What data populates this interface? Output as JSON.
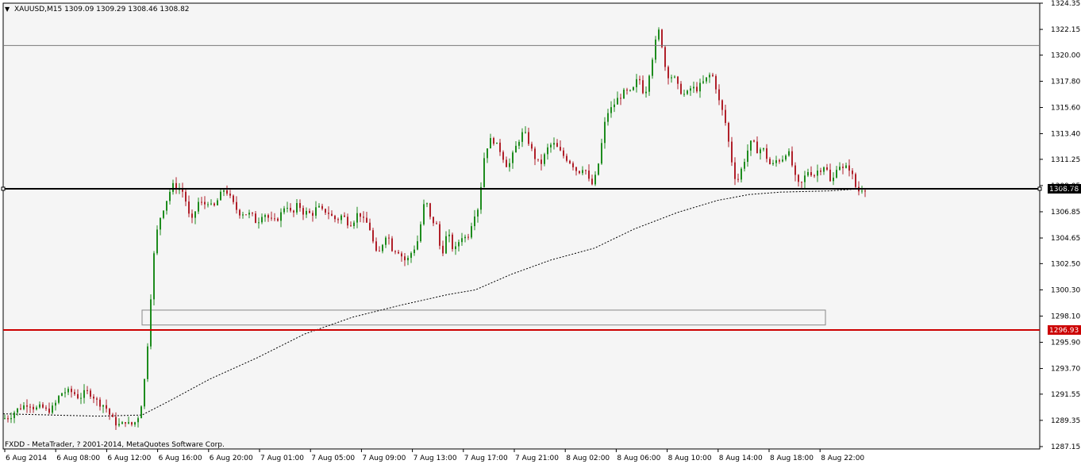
{
  "window": {
    "symbol_header": "XAUUSD,M15  1309.09 1309.29 1308.46 1308.82",
    "copyright": "FXDD - MetaTrader, ? 2001-2014, MetaQuotes Software Corp."
  },
  "colors": {
    "background": "#f5f5f5",
    "frame": "#000000",
    "candle_up": "#1e8c1e",
    "candle_down": "#b0202a",
    "support_line": "#cc0000",
    "current_price_line": "#000000",
    "moving_average": "#000000",
    "price_tag_red": "#cc0000",
    "price_tag_black": "#000000"
  },
  "levels": {
    "current_price": {
      "value": 1308.78,
      "label": "1308.78"
    },
    "support": {
      "value": 1296.93,
      "label": "1296.93"
    },
    "resistance": {
      "value": 1320.8
    }
  },
  "zone": {
    "from_time": "6 Aug 12:30",
    "to_time": "8 Aug 19:15",
    "top": 1298.6,
    "bottom": 1297.35
  },
  "chart_data": {
    "type": "candlestick",
    "symbol": "XAUUSD",
    "timeframe": "M15",
    "ohlc_last": {
      "open": 1309.09,
      "high": 1309.29,
      "low": 1308.46,
      "close": 1308.82
    },
    "y_ticks": [
      1324.35,
      1322.15,
      1320.0,
      1317.8,
      1315.6,
      1313.4,
      1311.25,
      1309.05,
      1306.85,
      1304.65,
      1302.5,
      1300.3,
      1298.1,
      1295.9,
      1293.7,
      1291.55,
      1289.35,
      1287.15
    ],
    "y_tick_labels": [
      "1324.35",
      "1322.15",
      "1320.00",
      "1317.80",
      "1315.60",
      "1313.40",
      "1311.25",
      "1309.05",
      "1306.85",
      "1304.65",
      "1302.50",
      "1300.30",
      "1298.10",
      "1295.90",
      "1293.70",
      "1291.55",
      "1289.35",
      "1287.15"
    ],
    "ylim": [
      1287.15,
      1324.35
    ],
    "x_tick_labels": [
      "6 Aug 2014",
      "6 Aug 08:00",
      "6 Aug 12:00",
      "6 Aug 16:00",
      "6 Aug 20:00",
      "7 Aug 01:00",
      "7 Aug 05:00",
      "7 Aug 09:00",
      "7 Aug 13:00",
      "7 Aug 17:00",
      "7 Aug 21:00",
      "8 Aug 02:00",
      "8 Aug 06:00",
      "8 Aug 10:00",
      "8 Aug 14:00",
      "8 Aug 18:00",
      "8 Aug 22:00"
    ],
    "price_path": [
      [
        0,
        1289.5
      ],
      [
        10,
        1289.6
      ],
      [
        18,
        1290.2
      ],
      [
        26,
        1290.5
      ],
      [
        34,
        1290.8
      ],
      [
        42,
        1290.3
      ],
      [
        50,
        1290.5
      ],
      [
        58,
        1290.1
      ],
      [
        66,
        1290.5
      ],
      [
        74,
        1291.6
      ],
      [
        82,
        1291.8
      ],
      [
        90,
        1291.7
      ],
      [
        98,
        1291.2
      ],
      [
        106,
        1291.8
      ],
      [
        114,
        1291.5
      ],
      [
        122,
        1290.8
      ],
      [
        130,
        1290.6
      ],
      [
        138,
        1289.6
      ],
      [
        144,
        1289.1
      ],
      [
        150,
        1288.9
      ],
      [
        156,
        1289.3
      ],
      [
        162,
        1288.9
      ],
      [
        168,
        1289.2
      ],
      [
        174,
        1289.9
      ],
      [
        178,
        1291.5
      ],
      [
        182,
        1294.0
      ],
      [
        186,
        1297.5
      ],
      [
        190,
        1302.0
      ],
      [
        194,
        1304.5
      ],
      [
        198,
        1306.0
      ],
      [
        202,
        1306.8
      ],
      [
        206,
        1307.5
      ],
      [
        210,
        1308.2
      ],
      [
        214,
        1308.9
      ],
      [
        218,
        1309.2
      ],
      [
        222,
        1308.6
      ],
      [
        226,
        1308.9
      ],
      [
        230,
        1308.2
      ],
      [
        234,
        1307.3
      ],
      [
        238,
        1305.8
      ],
      [
        242,
        1306.4
      ],
      [
        246,
        1307.4
      ],
      [
        250,
        1307.9
      ],
      [
        254,
        1307.2
      ],
      [
        258,
        1307.8
      ],
      [
        262,
        1307.6
      ],
      [
        266,
        1307.0
      ],
      [
        270,
        1307.6
      ],
      [
        274,
        1308.0
      ],
      [
        278,
        1308.6
      ],
      [
        282,
        1308.8
      ],
      [
        286,
        1308.2
      ],
      [
        290,
        1307.8
      ],
      [
        294,
        1307.2
      ],
      [
        298,
        1306.9
      ],
      [
        302,
        1306.6
      ],
      [
        306,
        1306.9
      ],
      [
        310,
        1306.5
      ],
      [
        314,
        1306.8
      ],
      [
        318,
        1306.2
      ],
      [
        322,
        1305.9
      ],
      [
        326,
        1306.4
      ],
      [
        330,
        1306.9
      ],
      [
        334,
        1306.4
      ],
      [
        338,
        1306.3
      ],
      [
        342,
        1305.9
      ],
      [
        346,
        1306.2
      ],
      [
        350,
        1306.4
      ],
      [
        354,
        1307.0
      ],
      [
        358,
        1307.5
      ],
      [
        362,
        1307.2
      ],
      [
        366,
        1306.4
      ],
      [
        370,
        1307.1
      ],
      [
        374,
        1307.6
      ],
      [
        378,
        1306.9
      ],
      [
        382,
        1306.7
      ],
      [
        386,
        1306.9
      ],
      [
        390,
        1306.5
      ],
      [
        394,
        1306.9
      ],
      [
        398,
        1307.3
      ],
      [
        402,
        1307.0
      ],
      [
        406,
        1306.8
      ],
      [
        410,
        1307.0
      ],
      [
        414,
        1306.5
      ],
      [
        418,
        1306.4
      ],
      [
        422,
        1306.1
      ],
      [
        426,
        1306.4
      ],
      [
        430,
        1306.6
      ],
      [
        434,
        1306.1
      ],
      [
        438,
        1305.8
      ],
      [
        442,
        1306.0
      ],
      [
        446,
        1306.3
      ],
      [
        450,
        1307.0
      ],
      [
        454,
        1306.2
      ],
      [
        458,
        1306.0
      ],
      [
        462,
        1305.8
      ],
      [
        466,
        1305.0
      ],
      [
        470,
        1303.6
      ],
      [
        474,
        1303.1
      ],
      [
        478,
        1303.8
      ],
      [
        482,
        1304.6
      ],
      [
        486,
        1305.2
      ],
      [
        490,
        1304.0
      ],
      [
        494,
        1303.5
      ],
      [
        498,
        1303.8
      ],
      [
        502,
        1303.3
      ],
      [
        506,
        1303.0
      ],
      [
        510,
        1302.6
      ],
      [
        514,
        1303.2
      ],
      [
        518,
        1303.6
      ],
      [
        522,
        1304.0
      ],
      [
        526,
        1304.8
      ],
      [
        530,
        1306.8
      ],
      [
        534,
        1307.9
      ],
      [
        538,
        1307.0
      ],
      [
        542,
        1305.6
      ],
      [
        546,
        1306.4
      ],
      [
        550,
        1305.0
      ],
      [
        554,
        1303.0
      ],
      [
        558,
        1304.2
      ],
      [
        562,
        1305.2
      ],
      [
        566,
        1304.2
      ],
      [
        570,
        1303.5
      ],
      [
        574,
        1304.0
      ],
      [
        578,
        1304.7
      ],
      [
        582,
        1304.9
      ],
      [
        586,
        1304.5
      ],
      [
        590,
        1305.3
      ],
      [
        594,
        1306.4
      ],
      [
        598,
        1307.0
      ],
      [
        602,
        1307.3
      ],
      [
        606,
        1310.8
      ],
      [
        610,
        1312.0
      ],
      [
        614,
        1312.7
      ],
      [
        618,
        1313.0
      ],
      [
        622,
        1312.6
      ],
      [
        626,
        1312.2
      ],
      [
        630,
        1311.8
      ],
      [
        634,
        1311.0
      ],
      [
        638,
        1310.6
      ],
      [
        642,
        1311.2
      ],
      [
        646,
        1312.0
      ],
      [
        650,
        1312.6
      ],
      [
        654,
        1313.2
      ],
      [
        658,
        1313.6
      ],
      [
        662,
        1313.0
      ],
      [
        666,
        1312.4
      ],
      [
        670,
        1311.6
      ],
      [
        674,
        1311.2
      ],
      [
        678,
        1310.8
      ],
      [
        682,
        1311.1
      ],
      [
        686,
        1312.0
      ],
      [
        690,
        1312.3
      ],
      [
        694,
        1312.6
      ],
      [
        698,
        1312.4
      ],
      [
        702,
        1312.0
      ],
      [
        706,
        1311.7
      ],
      [
        710,
        1311.4
      ],
      [
        714,
        1311.2
      ],
      [
        718,
        1310.9
      ],
      [
        722,
        1310.6
      ],
      [
        726,
        1310.1
      ],
      [
        730,
        1310.4
      ],
      [
        734,
        1310.7
      ],
      [
        738,
        1309.9
      ],
      [
        742,
        1309.0
      ],
      [
        746,
        1309.3
      ],
      [
        750,
        1310.2
      ],
      [
        754,
        1311.6
      ],
      [
        758,
        1313.5
      ],
      [
        762,
        1315.0
      ],
      [
        766,
        1315.4
      ],
      [
        770,
        1315.6
      ],
      [
        774,
        1316.2
      ],
      [
        778,
        1316.4
      ],
      [
        782,
        1316.7
      ],
      [
        786,
        1317.0
      ],
      [
        790,
        1316.8
      ],
      [
        794,
        1316.9
      ],
      [
        798,
        1317.4
      ],
      [
        802,
        1318.2
      ],
      [
        806,
        1317.6
      ],
      [
        810,
        1316.4
      ],
      [
        814,
        1317.8
      ],
      [
        818,
        1319.2
      ],
      [
        822,
        1320.4
      ],
      [
        826,
        1321.8
      ],
      [
        830,
        1322.2
      ],
      [
        834,
        1319.5
      ],
      [
        838,
        1318.6
      ],
      [
        842,
        1318.0
      ],
      [
        846,
        1318.4
      ],
      [
        850,
        1317.6
      ],
      [
        854,
        1317.1
      ],
      [
        858,
        1316.8
      ],
      [
        862,
        1316.6
      ],
      [
        866,
        1317.0
      ],
      [
        870,
        1317.4
      ],
      [
        874,
        1317.0
      ],
      [
        878,
        1317.3
      ],
      [
        882,
        1317.6
      ],
      [
        886,
        1317.8
      ],
      [
        890,
        1318.2
      ],
      [
        894,
        1318.4
      ],
      [
        898,
        1318.0
      ],
      [
        902,
        1316.6
      ],
      [
        906,
        1315.6
      ],
      [
        910,
        1315.0
      ],
      [
        914,
        1313.6
      ],
      [
        918,
        1311.8
      ],
      [
        922,
        1310.4
      ],
      [
        926,
        1309.2
      ],
      [
        930,
        1310.0
      ],
      [
        934,
        1310.8
      ],
      [
        938,
        1311.6
      ],
      [
        942,
        1312.4
      ],
      [
        946,
        1312.8
      ],
      [
        950,
        1312.2
      ],
      [
        954,
        1311.8
      ],
      [
        958,
        1312.4
      ],
      [
        962,
        1311.7
      ],
      [
        966,
        1311.1
      ],
      [
        970,
        1310.6
      ],
      [
        974,
        1311.0
      ],
      [
        978,
        1311.3
      ],
      [
        982,
        1311.1
      ],
      [
        986,
        1311.6
      ],
      [
        990,
        1312.0
      ],
      [
        994,
        1311.4
      ],
      [
        998,
        1310.1
      ],
      [
        1002,
        1309.3
      ],
      [
        1006,
        1309.0
      ],
      [
        1010,
        1309.5
      ],
      [
        1014,
        1310.1
      ],
      [
        1018,
        1310.4
      ],
      [
        1022,
        1309.8
      ],
      [
        1026,
        1310.1
      ],
      [
        1030,
        1310.5
      ],
      [
        1034,
        1310.4
      ],
      [
        1038,
        1311.0
      ],
      [
        1042,
        1309.6
      ],
      [
        1046,
        1309.1
      ],
      [
        1050,
        1310.2
      ],
      [
        1054,
        1311.0
      ],
      [
        1058,
        1310.5
      ],
      [
        1062,
        1310.3
      ],
      [
        1066,
        1310.8
      ],
      [
        1070,
        1310.2
      ],
      [
        1074,
        1309.5
      ],
      [
        1078,
        1308.4
      ],
      [
        1082,
        1308.8
      ],
      [
        1086,
        1308.8
      ]
    ],
    "moving_average_path": [
      [
        0,
        1289.9
      ],
      [
        60,
        1289.8
      ],
      [
        120,
        1289.7
      ],
      [
        175,
        1289.8
      ],
      [
        210,
        1291.0
      ],
      [
        260,
        1292.8
      ],
      [
        320,
        1294.6
      ],
      [
        380,
        1296.6
      ],
      [
        440,
        1298.0
      ],
      [
        500,
        1299.0
      ],
      [
        560,
        1299.9
      ],
      [
        595,
        1300.3
      ],
      [
        640,
        1301.6
      ],
      [
        690,
        1302.8
      ],
      [
        745,
        1303.8
      ],
      [
        795,
        1305.4
      ],
      [
        850,
        1306.8
      ],
      [
        900,
        1307.8
      ],
      [
        940,
        1308.3
      ],
      [
        980,
        1308.5
      ],
      [
        1040,
        1308.6
      ],
      [
        1086,
        1308.8
      ]
    ]
  }
}
